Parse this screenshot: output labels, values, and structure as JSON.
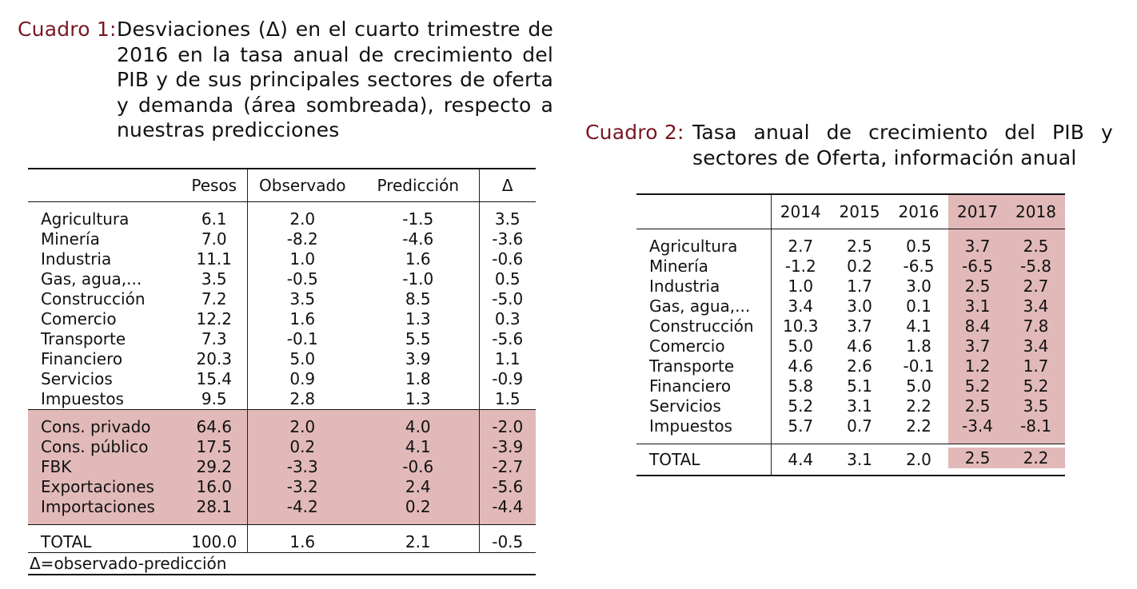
{
  "cuadro1": {
    "label": "Cuadro 1:",
    "title": "Desviaciones (Δ) en el cuarto trimestre de 2016 en la tasa anual de crecimiento del PIB y de sus principales sectores de oferta y demanda (área sombreada), respecto a nuestras predicciones",
    "headers": [
      "",
      "Pesos",
      "Observado",
      "Predicción",
      "Δ"
    ],
    "supply_rows": [
      [
        "Agricultura",
        "6.1",
        "2.0",
        "-1.5",
        "3.5"
      ],
      [
        "Minería",
        "7.0",
        "-8.2",
        "-4.6",
        "-3.6"
      ],
      [
        "Industria",
        "11.1",
        "1.0",
        "1.6",
        "-0.6"
      ],
      [
        "Gas, agua,...",
        "3.5",
        "-0.5",
        "-1.0",
        "0.5"
      ],
      [
        "Construcción",
        "7.2",
        "3.5",
        "8.5",
        "-5.0"
      ],
      [
        "Comercio",
        "12.2",
        "1.6",
        "1.3",
        "0.3"
      ],
      [
        "Transporte",
        "7.3",
        "-0.1",
        "5.5",
        "-5.6"
      ],
      [
        "Financiero",
        "20.3",
        "5.0",
        "3.9",
        "1.1"
      ],
      [
        "Servicios",
        "15.4",
        "0.9",
        "1.8",
        "-0.9"
      ],
      [
        "Impuestos",
        "9.5",
        "2.8",
        "1.3",
        "1.5"
      ]
    ],
    "demand_rows": [
      [
        "Cons. privado",
        "64.6",
        "2.0",
        "4.0",
        "-2.0"
      ],
      [
        "Cons. público",
        "17.5",
        "0.2",
        "4.1",
        "-3.9"
      ],
      [
        "FBK",
        "29.2",
        "-3.3",
        "-0.6",
        "-2.7"
      ],
      [
        "Exportaciones",
        "16.0",
        "-3.2",
        "2.4",
        "-5.6"
      ],
      [
        "Importaciones",
        "28.1",
        "-4.2",
        "0.2",
        "-4.4"
      ]
    ],
    "total": [
      "TOTAL",
      "100.0",
      "1.6",
      "2.1",
      "-0.5"
    ],
    "footnote": "Δ=observado-predicción"
  },
  "cuadro2": {
    "label": "Cuadro 2:",
    "title": "Tasa anual de crecimiento del PIB y sectores de Oferta, información anual",
    "headers": [
      "",
      "2014",
      "2015",
      "2016",
      "2017",
      "2018"
    ],
    "rows": [
      [
        "Agricultura",
        "2.7",
        "2.5",
        "0.5",
        "3.7",
        "2.5"
      ],
      [
        "Minería",
        "-1.2",
        "0.2",
        "-6.5",
        "-6.5",
        "-5.8"
      ],
      [
        "Industria",
        "1.0",
        "1.7",
        "3.0",
        "2.5",
        "2.7"
      ],
      [
        "Gas, agua,...",
        "3.4",
        "3.0",
        "0.1",
        "3.1",
        "3.4"
      ],
      [
        "Construcción",
        "10.3",
        "3.7",
        "4.1",
        "8.4",
        "7.8"
      ],
      [
        "Comercio",
        "5.0",
        "4.6",
        "1.8",
        "3.7",
        "3.4"
      ],
      [
        "Transporte",
        "4.6",
        "2.6",
        "-0.1",
        "1.2",
        "1.7"
      ],
      [
        "Financiero",
        "5.8",
        "5.1",
        "5.0",
        "5.2",
        "5.2"
      ],
      [
        "Servicios",
        "5.2",
        "3.1",
        "2.2",
        "2.5",
        "3.5"
      ],
      [
        "Impuestos",
        "5.7",
        "0.7",
        "2.2",
        "-3.4",
        "-8.1"
      ]
    ],
    "total": [
      "TOTAL",
      "4.4",
      "3.1",
      "2.0",
      "2.5",
      "2.2"
    ]
  },
  "colors": {
    "caption_label": "#7a1722",
    "shade": "#e2b9b9",
    "text": "#111111"
  }
}
